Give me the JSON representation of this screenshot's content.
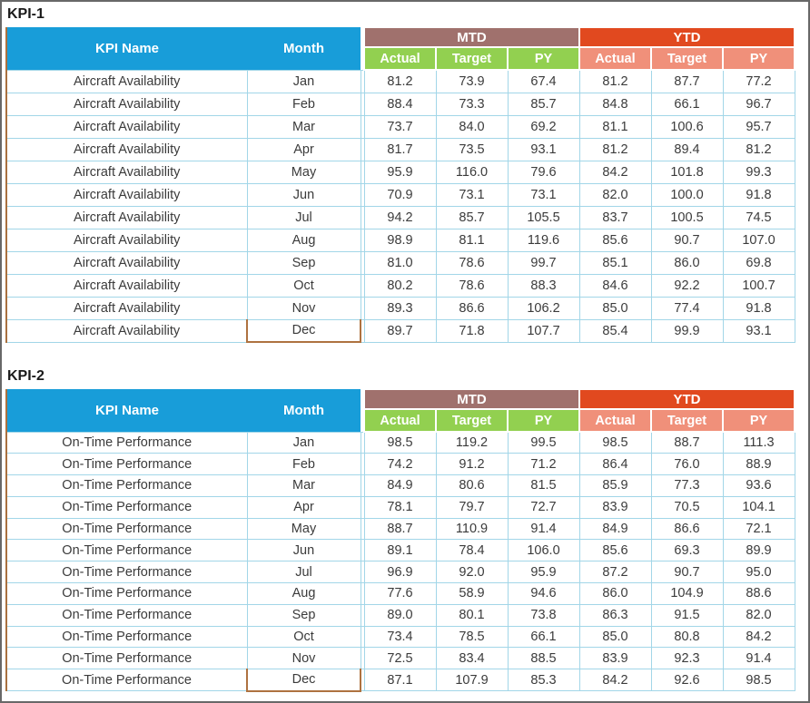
{
  "colors": {
    "header_blue": "#189DD9",
    "mtd_brown": "#A0716D",
    "ytd_orange": "#E1491F",
    "sub_green": "#92D050",
    "sub_salmon": "#F0907A",
    "grid_cyan": "#A2D6E8",
    "accent_brown_border": "#AE7240"
  },
  "columns": {
    "kpi_name": "KPI Name",
    "month": "Month",
    "mtd": "MTD",
    "ytd": "YTD",
    "sub": [
      "Actual",
      "Target",
      "PY"
    ]
  },
  "tables": [
    {
      "title": "KPI-1",
      "kpi_name": "Aircraft Availability",
      "rows": [
        {
          "month": "Jan",
          "mtd": [
            81.2,
            73.9,
            67.4
          ],
          "ytd": [
            81.2,
            87.7,
            77.2
          ]
        },
        {
          "month": "Feb",
          "mtd": [
            88.4,
            73.3,
            85.7
          ],
          "ytd": [
            84.8,
            66.1,
            96.7
          ]
        },
        {
          "month": "Mar",
          "mtd": [
            73.7,
            84.0,
            69.2
          ],
          "ytd": [
            81.1,
            100.6,
            95.7
          ]
        },
        {
          "month": "Apr",
          "mtd": [
            81.7,
            73.5,
            93.1
          ],
          "ytd": [
            81.2,
            89.4,
            81.2
          ]
        },
        {
          "month": "May",
          "mtd": [
            95.9,
            116.0,
            79.6
          ],
          "ytd": [
            84.2,
            101.8,
            99.3
          ]
        },
        {
          "month": "Jun",
          "mtd": [
            70.9,
            73.1,
            73.1
          ],
          "ytd": [
            82.0,
            100.0,
            91.8
          ]
        },
        {
          "month": "Jul",
          "mtd": [
            94.2,
            85.7,
            105.5
          ],
          "ytd": [
            83.7,
            100.5,
            74.5
          ]
        },
        {
          "month": "Aug",
          "mtd": [
            98.9,
            81.1,
            119.6
          ],
          "ytd": [
            85.6,
            90.7,
            107.0
          ]
        },
        {
          "month": "Sep",
          "mtd": [
            81.0,
            78.6,
            99.7
          ],
          "ytd": [
            85.1,
            86.0,
            69.8
          ]
        },
        {
          "month": "Oct",
          "mtd": [
            80.2,
            78.6,
            88.3
          ],
          "ytd": [
            84.6,
            92.2,
            100.7
          ]
        },
        {
          "month": "Nov",
          "mtd": [
            89.3,
            86.6,
            106.2
          ],
          "ytd": [
            85.0,
            77.4,
            91.8
          ]
        },
        {
          "month": "Dec",
          "mtd": [
            89.7,
            71.8,
            107.7
          ],
          "ytd": [
            85.4,
            99.9,
            93.1
          ]
        }
      ]
    },
    {
      "title": "KPI-2",
      "kpi_name": "On-Time Performance",
      "rows": [
        {
          "month": "Jan",
          "mtd": [
            98.5,
            119.2,
            99.5
          ],
          "ytd": [
            98.5,
            88.7,
            111.3
          ]
        },
        {
          "month": "Feb",
          "mtd": [
            74.2,
            91.2,
            71.2
          ],
          "ytd": [
            86.4,
            76.0,
            88.9
          ]
        },
        {
          "month": "Mar",
          "mtd": [
            84.9,
            80.6,
            81.5
          ],
          "ytd": [
            85.9,
            77.3,
            93.6
          ]
        },
        {
          "month": "Apr",
          "mtd": [
            78.1,
            79.7,
            72.7
          ],
          "ytd": [
            83.9,
            70.5,
            104.1
          ]
        },
        {
          "month": "May",
          "mtd": [
            88.7,
            110.9,
            91.4
          ],
          "ytd": [
            84.9,
            86.6,
            72.1
          ]
        },
        {
          "month": "Jun",
          "mtd": [
            89.1,
            78.4,
            106.0
          ],
          "ytd": [
            85.6,
            69.3,
            89.9
          ]
        },
        {
          "month": "Jul",
          "mtd": [
            96.9,
            92.0,
            95.9
          ],
          "ytd": [
            87.2,
            90.7,
            95.0
          ]
        },
        {
          "month": "Aug",
          "mtd": [
            77.6,
            58.9,
            94.6
          ],
          "ytd": [
            86.0,
            104.9,
            88.6
          ]
        },
        {
          "month": "Sep",
          "mtd": [
            89.0,
            80.1,
            73.8
          ],
          "ytd": [
            86.3,
            91.5,
            82.0
          ]
        },
        {
          "month": "Oct",
          "mtd": [
            73.4,
            78.5,
            66.1
          ],
          "ytd": [
            85.0,
            80.8,
            84.2
          ]
        },
        {
          "month": "Nov",
          "mtd": [
            72.5,
            83.4,
            88.5
          ],
          "ytd": [
            83.9,
            92.3,
            91.4
          ]
        },
        {
          "month": "Dec",
          "mtd": [
            87.1,
            107.9,
            85.3
          ],
          "ytd": [
            84.2,
            92.6,
            98.5
          ]
        }
      ]
    }
  ]
}
